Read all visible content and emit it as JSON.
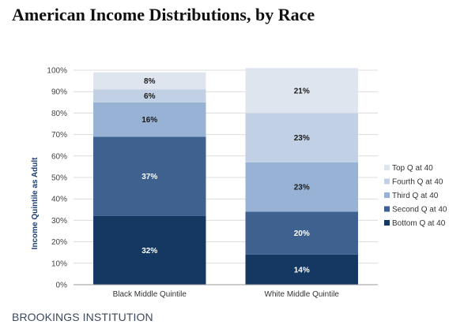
{
  "title": "American Income Distributions, by Race",
  "source": "BROOKINGS INSTITUTION",
  "colors": {
    "top": "#dfe5ef",
    "fourth": "#c1d0e4",
    "third": "#97b2d4",
    "second": "#3e6190",
    "bottom": "#143862"
  },
  "chart_data": {
    "type": "bar",
    "stacked": true,
    "categories": [
      "Black Middle Quintile",
      "White Middle Quintile"
    ],
    "ylabel": "Income Quintile as Adult",
    "xlabel": "",
    "ylim": [
      0,
      100
    ],
    "y_ticks": [
      "0%",
      "10%",
      "20%",
      "30%",
      "40%",
      "50%",
      "60%",
      "70%",
      "80%",
      "90%",
      "100%"
    ],
    "legend_position": "right",
    "grid": true,
    "series": [
      {
        "name": "Bottom Q at 40",
        "key": "bottom",
        "values": [
          32,
          14
        ],
        "labels": [
          "32%",
          "14%"
        ]
      },
      {
        "name": "Second Q at 40",
        "key": "second",
        "values": [
          37,
          20
        ],
        "labels": [
          "37%",
          "20%"
        ]
      },
      {
        "name": "Third Q at 40",
        "key": "third",
        "values": [
          16,
          23
        ],
        "labels": [
          "16%",
          "23%"
        ]
      },
      {
        "name": "Fourth Q at 40",
        "key": "fourth",
        "values": [
          6,
          23
        ],
        "labels": [
          "6%",
          "23%"
        ]
      },
      {
        "name": "Top Q at 40",
        "key": "top",
        "values": [
          8,
          21
        ],
        "labels": [
          "8%",
          "21%"
        ]
      }
    ]
  }
}
